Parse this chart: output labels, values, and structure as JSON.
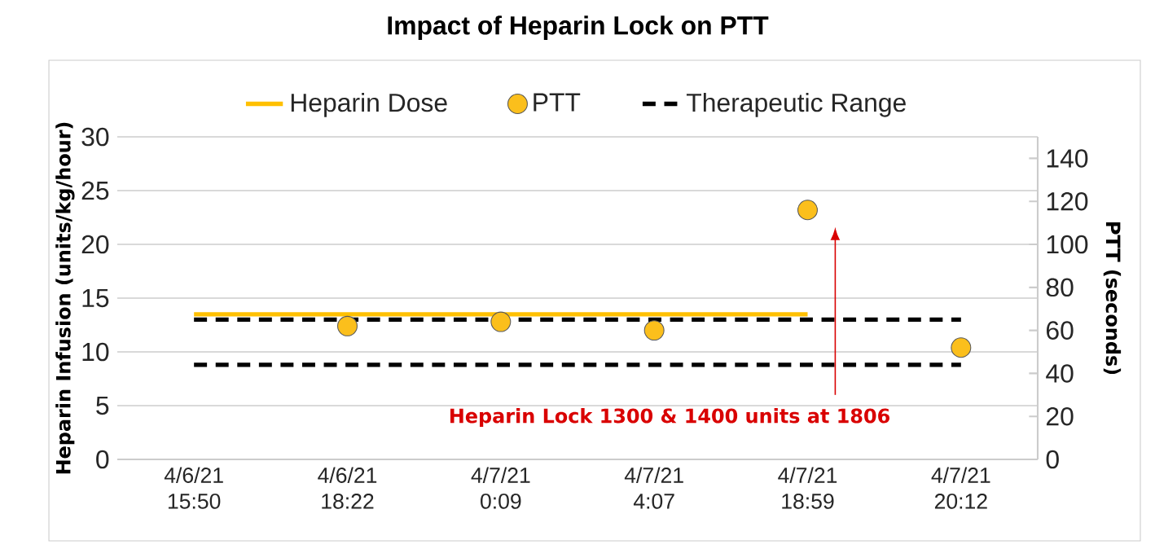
{
  "chart_data": {
    "type": "line",
    "title": "Impact of Heparin Lock on PTT",
    "ylabel": "Heparin Infusion (units/kg/hour)",
    "y2label": "PTT (seconds)",
    "categories": [
      "4/6/21 15:50",
      "4/6/21 18:22",
      "4/7/21 0:09",
      "4/7/21 4:07",
      "4/7/21 18:59",
      "4/7/21 20:12"
    ],
    "series": [
      {
        "name": "Heparin Dose",
        "color": "#ffc000",
        "marker": "none",
        "line_style": "solid",
        "values": [
          13.5,
          13.5,
          13.5,
          13.5,
          13.5,
          null
        ]
      },
      {
        "name": "PTT",
        "type": "scatter",
        "axis": "y2",
        "color": "#fbbf1c",
        "marker": "circle",
        "values": [
          null,
          62,
          64,
          60,
          116,
          52
        ]
      },
      {
        "name": "Therapeutic Range",
        "axis": "y2",
        "color": "#000000",
        "marker": "none",
        "line_style": "dashed",
        "values": [
          65,
          65,
          65,
          65,
          65,
          65
        ]
      },
      {
        "axis": "y2",
        "color": "#000000",
        "marker": "none",
        "line_style": "dashed",
        "values": [
          44,
          44,
          44,
          44,
          44,
          44
        ]
      }
    ],
    "ylim": [
      0,
      30
    ],
    "yticks": [
      0,
      5,
      10,
      15,
      20,
      25,
      30
    ],
    "y2lim": [
      0,
      150
    ],
    "y2ticks": [
      0,
      20,
      40,
      60,
      80,
      100,
      120,
      140
    ],
    "grid": "y",
    "legend": "top",
    "annotations": [
      "Heparin Lock 1300 & 1400 units at 1806"
    ]
  }
}
